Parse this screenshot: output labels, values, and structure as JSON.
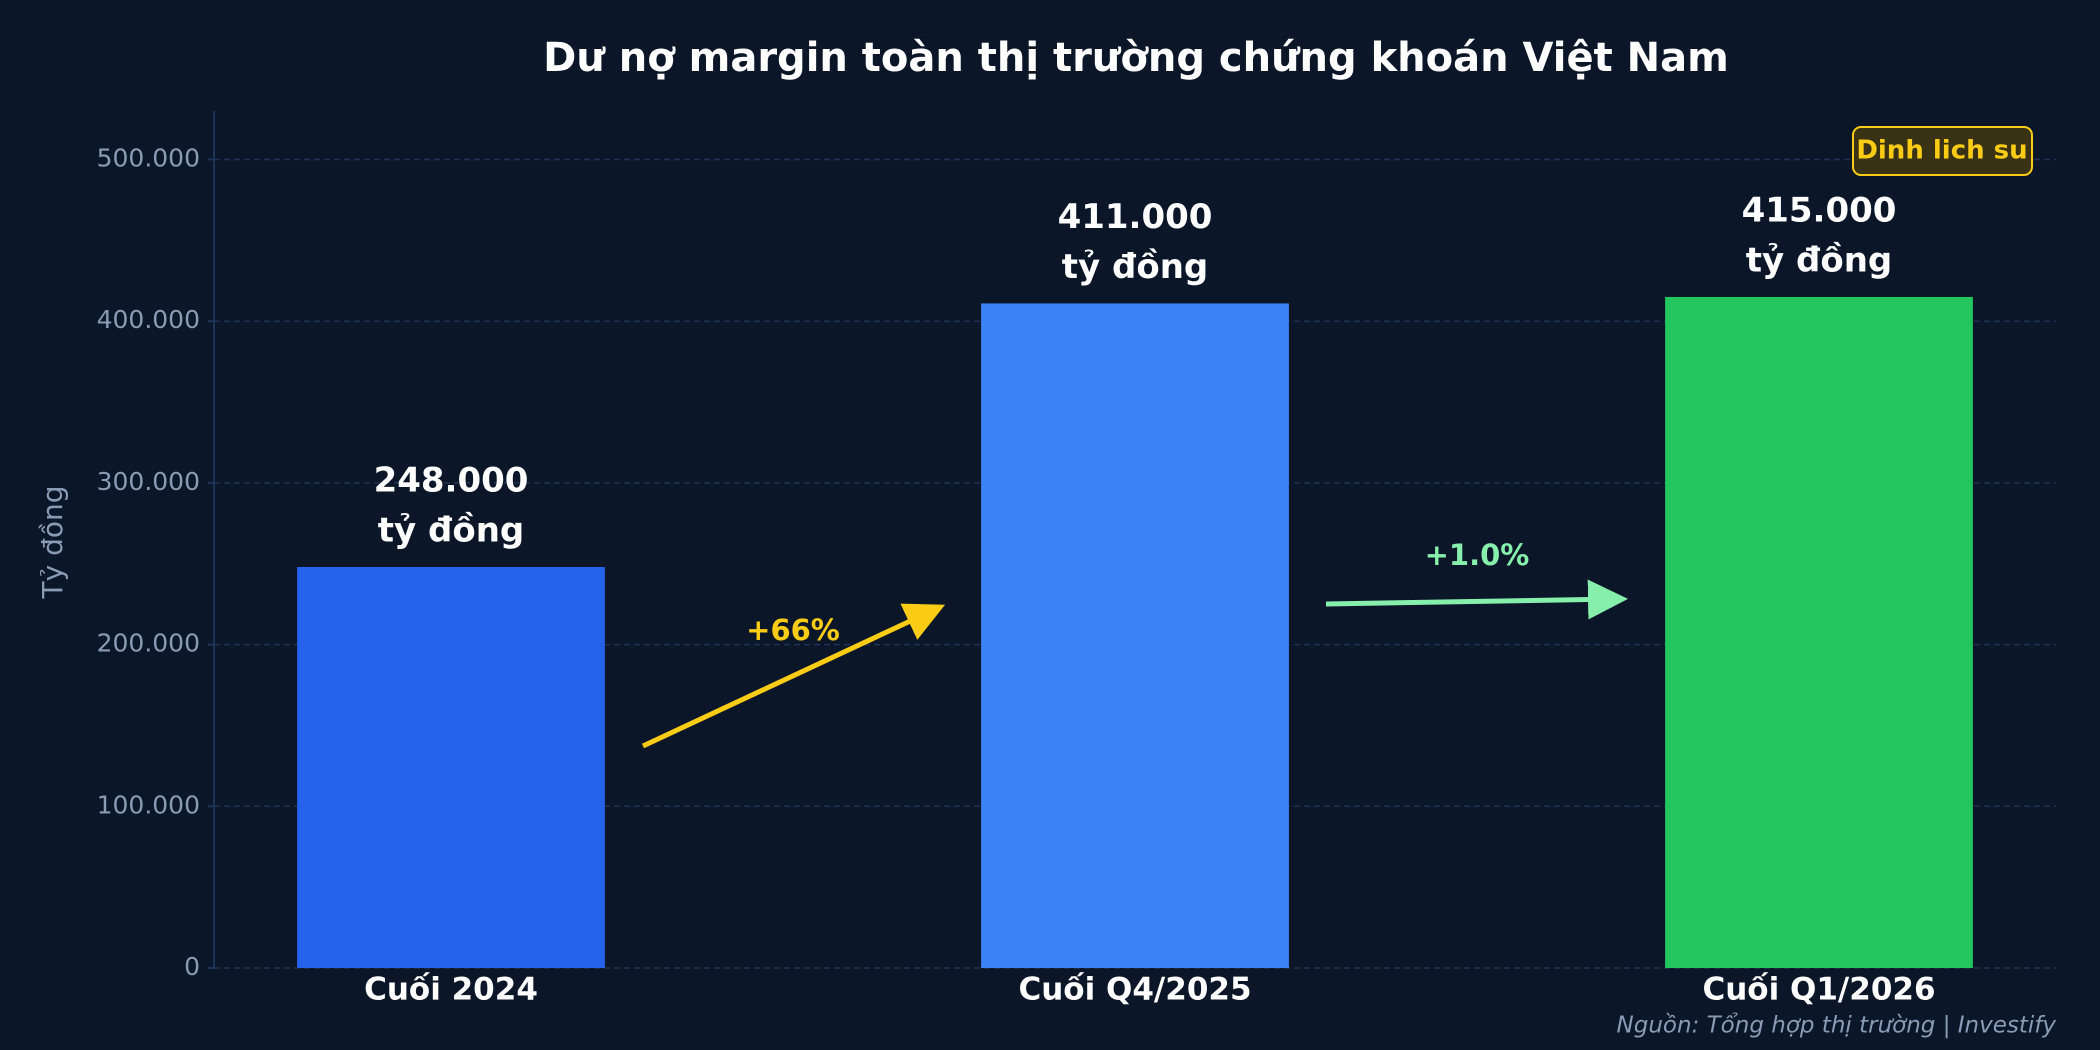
{
  "chart_data": {
    "type": "bar",
    "title": "Dư nợ margin toàn thị trường chứng khoán Việt Nam",
    "y_label": "Tỷ đồng",
    "categories": [
      "Cuối 2024",
      "Cuối Q4/2025",
      "Cuối Q1/2026"
    ],
    "values": [
      248000,
      411000,
      415000
    ],
    "value_labels": [
      "248.000",
      "411.000",
      "415.000"
    ],
    "value_unit": "tỷ đồng",
    "colors": [
      "#2563eb",
      "#3b82f6",
      "#22c55e"
    ],
    "ylim": [
      0,
      530000
    ],
    "yticks": [
      0,
      {
        "value": 100000,
        "label": "100.000"
      },
      {
        "value": 200000,
        "label": "200.000"
      },
      {
        "value": 300000,
        "label": "300.000"
      },
      {
        "value": 400000,
        "label": "400.000"
      },
      {
        "value": 500000,
        "label": "500.000"
      }
    ],
    "grid": true,
    "annotations": [
      {
        "text": "+66%",
        "color": "#facc15"
      },
      {
        "text": "+1.0%",
        "color": "#86efac"
      }
    ],
    "badge": "Dinh lich su",
    "source": "Nguồn: Tổng hợp thị trường | Investify"
  }
}
